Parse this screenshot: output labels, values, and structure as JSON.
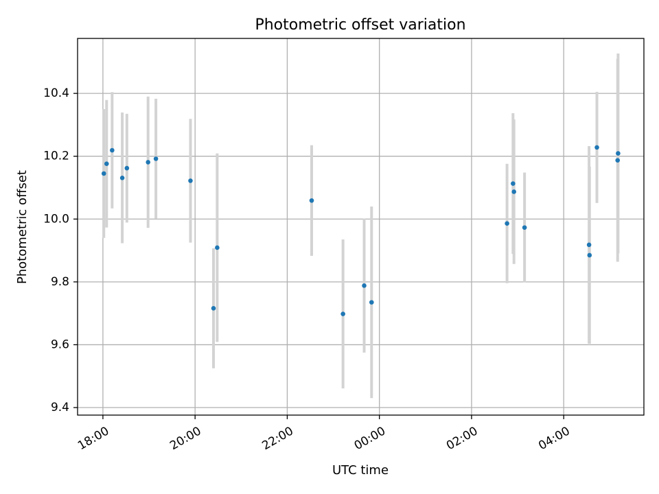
{
  "chart_data": {
    "type": "scatter",
    "title": "Photometric offset variation",
    "xlabel": "UTC time",
    "ylabel": "Photometric offset",
    "x_unit": "hours",
    "x_axis": {
      "ticks": [
        {
          "label": "18:00",
          "t": 18.0
        },
        {
          "label": "20:00",
          "t": 20.0
        },
        {
          "label": "22:00",
          "t": 22.0
        },
        {
          "label": "00:00",
          "t": 24.0
        },
        {
          "label": "02:00",
          "t": 26.0
        },
        {
          "label": "04:00",
          "t": 28.0
        }
      ],
      "xlim": [
        17.45,
        29.74
      ]
    },
    "y_axis": {
      "ticks": [
        {
          "label": "9.4",
          "v": 9.4
        },
        {
          "label": "9.6",
          "v": 9.6
        },
        {
          "label": "9.8",
          "v": 9.8
        },
        {
          "label": "10.0",
          "v": 10.0
        },
        {
          "label": "10.2",
          "v": 10.2
        },
        {
          "label": "10.4",
          "v": 10.4
        }
      ],
      "ylim": [
        9.376,
        10.575
      ]
    },
    "grid": true,
    "colors": {
      "point": "#1f77b4",
      "errorbar": "#d3d3d3",
      "grid": "#b0b0b0"
    },
    "points": [
      {
        "t": 18.02,
        "y": 10.145,
        "err": 0.205
      },
      {
        "t": 18.08,
        "y": 10.176,
        "err": 0.203
      },
      {
        "t": 18.2,
        "y": 10.219,
        "err": 0.185
      },
      {
        "t": 18.42,
        "y": 10.131,
        "err": 0.208
      },
      {
        "t": 18.52,
        "y": 10.162,
        "err": 0.173
      },
      {
        "t": 18.98,
        "y": 10.181,
        "err": 0.209
      },
      {
        "t": 19.15,
        "y": 10.192,
        "err": 0.191
      },
      {
        "t": 19.9,
        "y": 10.122,
        "err": 0.197
      },
      {
        "t": 20.4,
        "y": 9.716,
        "err": 0.191
      },
      {
        "t": 20.48,
        "y": 9.909,
        "err": 0.3
      },
      {
        "t": 22.53,
        "y": 10.059,
        "err": 0.176
      },
      {
        "t": 23.21,
        "y": 9.698,
        "err": 0.237
      },
      {
        "t": 23.67,
        "y": 9.788,
        "err": 0.213
      },
      {
        "t": 23.83,
        "y": 9.735,
        "err": 0.305
      },
      {
        "t": 26.77,
        "y": 9.986,
        "err": 0.19
      },
      {
        "t": 26.9,
        "y": 10.113,
        "err": 0.224
      },
      {
        "t": 26.92,
        "y": 10.087,
        "err": 0.23
      },
      {
        "t": 27.15,
        "y": 9.973,
        "err": 0.175
      },
      {
        "t": 28.55,
        "y": 9.918,
        "err": 0.314
      },
      {
        "t": 28.56,
        "y": 9.885,
        "err": 0.282
      },
      {
        "t": 28.72,
        "y": 10.228,
        "err": 0.177
      },
      {
        "t": 29.18,
        "y": 10.209,
        "err": 0.318
      },
      {
        "t": 29.17,
        "y": 10.187,
        "err": 0.323
      }
    ]
  }
}
